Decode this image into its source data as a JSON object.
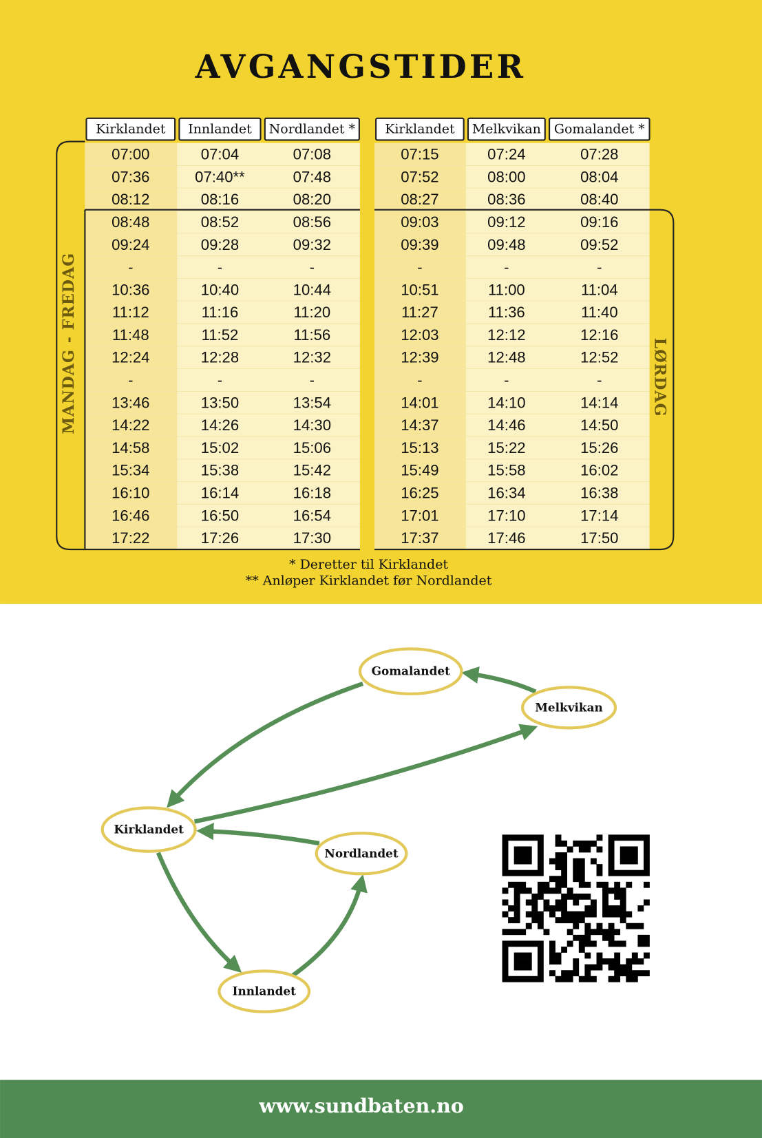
{
  "title": "AVGANGSTIDER",
  "table": {
    "headers": [
      "Kirklandet",
      "Innlandet",
      "Nordlandet *",
      "Kirklandet",
      "Melkvikan",
      "Gomalandet *"
    ],
    "rows": [
      [
        "07:00",
        "07:04",
        "07:08",
        "07:15",
        "07:24",
        "07:28"
      ],
      [
        "07:36",
        "07:40**",
        "07:48",
        "07:52",
        "08:00",
        "08:04"
      ],
      [
        "08:12",
        "08:16",
        "08:20",
        "08:27",
        "08:36",
        "08:40"
      ],
      [
        "08:48",
        "08:52",
        "08:56",
        "09:03",
        "09:12",
        "09:16"
      ],
      [
        "09:24",
        "09:28",
        "09:32",
        "09:39",
        "09:48",
        "09:52"
      ],
      [
        "-",
        "-",
        "-",
        "-",
        "-",
        "-"
      ],
      [
        "10:36",
        "10:40",
        "10:44",
        "10:51",
        "11:00",
        "11:04"
      ],
      [
        "11:12",
        "11:16",
        "11:20",
        "11:27",
        "11:36",
        "11:40"
      ],
      [
        "11:48",
        "11:52",
        "11:56",
        "12:03",
        "12:12",
        "12:16"
      ],
      [
        "12:24",
        "12:28",
        "12:32",
        "12:39",
        "12:48",
        "12:52"
      ],
      [
        "-",
        "-",
        "-",
        "-",
        "-",
        "-"
      ],
      [
        "13:46",
        "13:50",
        "13:54",
        "14:01",
        "14:10",
        "14:14"
      ],
      [
        "14:22",
        "14:26",
        "14:30",
        "14:37",
        "14:46",
        "14:50"
      ],
      [
        "14:58",
        "15:02",
        "15:06",
        "15:13",
        "15:22",
        "15:26"
      ],
      [
        "15:34",
        "15:38",
        "15:42",
        "15:49",
        "15:58",
        "16:02"
      ],
      [
        "16:10",
        "16:14",
        "16:18",
        "16:25",
        "16:34",
        "16:38"
      ],
      [
        "16:46",
        "16:50",
        "16:54",
        "17:01",
        "17:10",
        "17:14"
      ],
      [
        "17:22",
        "17:26",
        "17:30",
        "17:37",
        "17:46",
        "17:50"
      ]
    ]
  },
  "weekday_label": "MANDAG - FREDAG",
  "saturday_label": "LØRDAG",
  "notes": [
    "* Deretter til Kirklandet",
    "** Anløper Kirklandet før Nordlandet"
  ],
  "nodes": [
    {
      "label": "Gomalandet"
    },
    {
      "label": "Melkvikan"
    },
    {
      "label": "Kirklandet"
    },
    {
      "label": "Nordlandet"
    },
    {
      "label": "Innlandet"
    }
  ],
  "footer": "www.sundbaten.no"
}
